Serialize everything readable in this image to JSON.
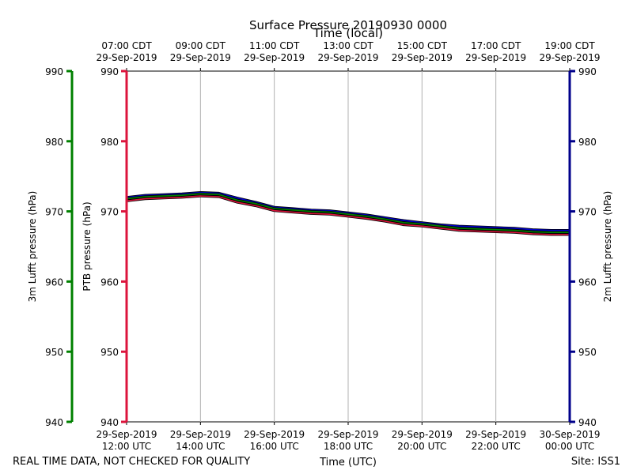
{
  "chart_data": {
    "type": "line",
    "title": "Surface Pressure 20190930 0000",
    "top_axis_label": "Time (local)",
    "xlabel": "Time (UTC)",
    "left_outer_label": "3m Lufft pressure (hPa)",
    "left_inner_label": "PTB pressure (hPa)",
    "right_label": "2m Lufft pressure (hPa)",
    "ylim": [
      940,
      990
    ],
    "yticks": [
      "940",
      "950",
      "960",
      "970",
      "980",
      "990"
    ],
    "xlim_hours": [
      0,
      12
    ],
    "bottom_ticks": [
      {
        "h": 0,
        "date": "29-Sep-2019",
        "time": "12:00 UTC"
      },
      {
        "h": 2,
        "date": "29-Sep-2019",
        "time": "14:00 UTC"
      },
      {
        "h": 4,
        "date": "29-Sep-2019",
        "time": "16:00 UTC"
      },
      {
        "h": 6,
        "date": "29-Sep-2019",
        "time": "18:00 UTC"
      },
      {
        "h": 8,
        "date": "29-Sep-2019",
        "time": "20:00 UTC"
      },
      {
        "h": 10,
        "date": "29-Sep-2019",
        "time": "22:00 UTC"
      },
      {
        "h": 12,
        "date": "30-Sep-2019",
        "time": "00:00 UTC"
      }
    ],
    "top_ticks": [
      {
        "h": 0,
        "time": "07:00 CDT",
        "date": "29-Sep-2019"
      },
      {
        "h": 2,
        "time": "09:00 CDT",
        "date": "29-Sep-2019"
      },
      {
        "h": 4,
        "time": "11:00 CDT",
        "date": "29-Sep-2019"
      },
      {
        "h": 6,
        "time": "13:00 CDT",
        "date": "29-Sep-2019"
      },
      {
        "h": 8,
        "time": "15:00 CDT",
        "date": "29-Sep-2019"
      },
      {
        "h": 10,
        "time": "17:00 CDT",
        "date": "29-Sep-2019"
      },
      {
        "h": 12,
        "time": "19:00 CDT",
        "date": "29-Sep-2019"
      }
    ],
    "x_hours": [
      0,
      0.5,
      1,
      1.5,
      2,
      2.5,
      3,
      3.5,
      4,
      4.5,
      5,
      5.5,
      6,
      6.5,
      7,
      7.5,
      8,
      8.5,
      9,
      9.5,
      10,
      10.5,
      11,
      11.5,
      12
    ],
    "series": [
      {
        "name": "PTB pressure",
        "color": "#dc143c",
        "values": [
          971.5,
          971.8,
          971.9,
          972.0,
          972.2,
          972.1,
          971.3,
          970.8,
          970.1,
          969.9,
          969.7,
          969.6,
          969.3,
          969.0,
          968.6,
          968.1,
          967.9,
          967.6,
          967.3,
          967.2,
          967.1,
          967.0,
          966.8,
          966.7,
          966.7
        ]
      },
      {
        "name": "3m Lufft pressure",
        "color": "#008000",
        "values": [
          971.8,
          972.1,
          972.2,
          972.3,
          972.5,
          972.4,
          971.6,
          971.1,
          970.4,
          970.2,
          970.0,
          969.9,
          969.6,
          969.3,
          968.9,
          968.4,
          968.2,
          967.9,
          967.6,
          967.5,
          967.4,
          967.3,
          967.1,
          967.0,
          967.0
        ]
      },
      {
        "name": "2m Lufft pressure",
        "color": "#0000cd",
        "values": [
          972.0,
          972.3,
          972.4,
          972.5,
          972.7,
          972.6,
          971.9,
          971.3,
          970.6,
          970.4,
          970.2,
          970.1,
          969.8,
          969.5,
          969.1,
          968.7,
          968.4,
          968.1,
          967.9,
          967.8,
          967.7,
          967.6,
          967.4,
          967.3,
          967.3
        ]
      }
    ],
    "axis_colors": {
      "outer_left": "#008000",
      "inner_left": "#dc143c",
      "right": "#00008b"
    }
  },
  "footer": {
    "quality_note": "REAL TIME DATA, NOT CHECKED FOR QUALITY",
    "site": "Site: ISS1"
  }
}
